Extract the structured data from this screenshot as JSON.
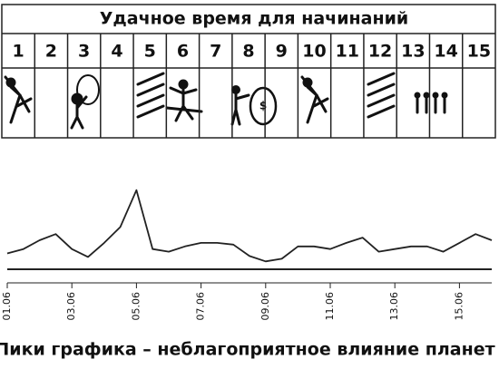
{
  "table": {
    "title": "Удачное время для начинаний",
    "days": [
      1,
      2,
      3,
      4,
      5,
      6,
      7,
      8,
      9,
      10,
      11,
      12,
      13,
      14,
      15
    ]
  },
  "chart_data": {
    "type": "line",
    "categories": [
      "01.06",
      null,
      null,
      null,
      "03.06",
      null,
      null,
      null,
      "05.06",
      null,
      null,
      null,
      "07.06",
      null,
      null,
      null,
      "09.06",
      null,
      null,
      null,
      "11.06",
      null,
      null,
      null,
      "13.06",
      null,
      null,
      null,
      "15.06",
      null,
      null
    ],
    "values": [
      18,
      23,
      33,
      40,
      23,
      14,
      30,
      48,
      90,
      23,
      20,
      26,
      30,
      30,
      28,
      15,
      9,
      12,
      26,
      26,
      23,
      30,
      36,
      20,
      23,
      26,
      26,
      20,
      30,
      40,
      33
    ],
    "color": "#222222",
    "ylim": [
      0,
      100
    ],
    "caption": "Пики графика – неблагоприятное влияние планет"
  }
}
